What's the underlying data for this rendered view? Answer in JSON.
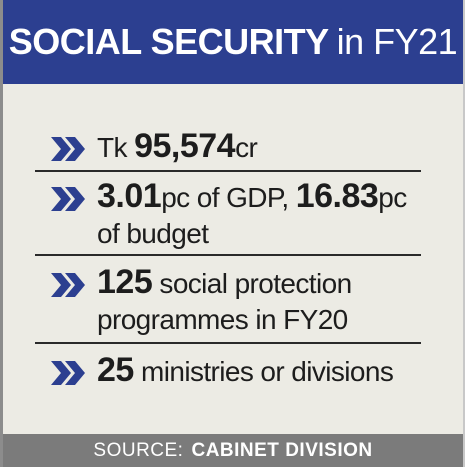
{
  "header": {
    "title_bold": "SOCIAL SECURITY",
    "title_light": "in FY21",
    "background": "#2c3f90"
  },
  "items": [
    {
      "icon": "double-chevron-right-icon",
      "parts": [
        "Tk ",
        "95,574",
        "cr"
      ]
    },
    {
      "icon": "double-chevron-right-icon",
      "parts": [
        "3.01",
        "pc of GDP, ",
        "16.83",
        "pc",
        "of budget"
      ]
    },
    {
      "icon": "double-chevron-right-icon",
      "parts": [
        "125",
        " social protection",
        "programmes in FY20"
      ]
    },
    {
      "icon": "double-chevron-right-icon",
      "parts": [
        "25",
        " ministries or divisions"
      ]
    }
  ],
  "colors": {
    "chevron": "#2c3f90",
    "panel": "#ecebe4",
    "footer": "#7b7b7b"
  },
  "footer": {
    "label": "SOURCE:",
    "source": "CABINET DIVISION"
  }
}
